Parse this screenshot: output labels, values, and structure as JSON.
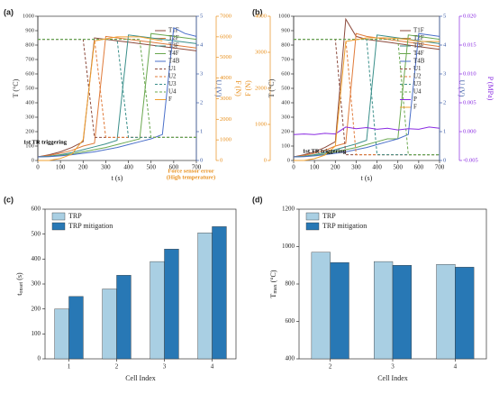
{
  "chart_data": [
    {
      "type": "line",
      "panel": "(a)",
      "x": [
        0,
        50,
        100,
        150,
        200,
        250,
        300,
        350,
        400,
        450,
        500,
        550,
        600,
        650,
        700
      ],
      "xlim": [
        0,
        700
      ],
      "xticks": [
        0,
        100,
        200,
        300,
        400,
        500,
        600,
        700
      ],
      "xlabel": "t (s)",
      "ylim": [
        0,
        1000
      ],
      "yticks": [
        0,
        100,
        200,
        300,
        400,
        500,
        600,
        700,
        800,
        900,
        1000
      ],
      "ylabel": "T (°C)",
      "y2lim": [
        0,
        5
      ],
      "y2ticks": [
        0,
        1,
        2,
        3,
        4,
        5
      ],
      "y2label": "U (V)",
      "y2color": "#3b5ba5",
      "y3lim": [
        0,
        7000
      ],
      "y3ticks": [
        0,
        1000,
        2000,
        3000,
        4000,
        5000,
        6000,
        7000
      ],
      "y3label": "F (N)",
      "y3color": "#e8901e",
      "series": [
        {
          "name": "T1F",
          "color": "#8c4a3c",
          "values": [
            25,
            40,
            60,
            90,
            130,
            850,
            840,
            830,
            820,
            810,
            800,
            790,
            780,
            770,
            760
          ]
        },
        {
          "name": "T2F",
          "color": "#e07b3a",
          "values": [
            25,
            35,
            50,
            70,
            100,
            120,
            860,
            850,
            840,
            830,
            820,
            810,
            800,
            790,
            780
          ]
        },
        {
          "name": "T3F",
          "color": "#3a8f8a",
          "values": [
            25,
            30,
            40,
            55,
            75,
            95,
            115,
            140,
            870,
            860,
            850,
            840,
            830,
            820,
            810
          ]
        },
        {
          "name": "T4F",
          "color": "#6aa84f",
          "values": [
            25,
            28,
            35,
            45,
            60,
            75,
            90,
            110,
            130,
            150,
            880,
            870,
            860,
            850,
            840
          ]
        },
        {
          "name": "T4B",
          "color": "#4a6fc9",
          "values": [
            25,
            27,
            32,
            40,
            50,
            60,
            75,
            90,
            110,
            130,
            150,
            180,
            920,
            880,
            860
          ]
        },
        {
          "name": "U1",
          "color": "#8c4a3c",
          "dash": true,
          "axis": "y2",
          "values": [
            4.2,
            4.2,
            4.2,
            4.2,
            4.2,
            0.8,
            0.8,
            0.8,
            0.8,
            0.8,
            0.8,
            0.8,
            0.8,
            0.8,
            0.8
          ]
        },
        {
          "name": "U2",
          "color": "#e07b3a",
          "dash": true,
          "axis": "y2",
          "values": [
            4.2,
            4.2,
            4.2,
            4.2,
            4.2,
            4.2,
            0.8,
            0.8,
            0.8,
            0.8,
            0.8,
            0.8,
            0.8,
            0.8,
            0.8
          ]
        },
        {
          "name": "U3",
          "color": "#3a8f8a",
          "dash": true,
          "axis": "y2",
          "values": [
            4.2,
            4.2,
            4.2,
            4.2,
            4.2,
            4.2,
            4.2,
            4.2,
            0.8,
            0.8,
            0.8,
            0.8,
            0.8,
            0.8,
            0.8
          ]
        },
        {
          "name": "U4",
          "color": "#6aa84f",
          "dash": true,
          "axis": "y2",
          "values": [
            4.2,
            4.2,
            4.2,
            4.2,
            4.2,
            4.2,
            4.2,
            4.2,
            4.2,
            4.2,
            0.8,
            0.8,
            0.8,
            0.8,
            0.8
          ]
        },
        {
          "name": "F",
          "color": "#f0a030",
          "axis": "y3",
          "values": [
            0,
            0,
            100,
            300,
            1000,
            5800,
            5900,
            6000,
            6000,
            6000,
            5900,
            5800,
            null,
            null,
            null
          ]
        }
      ],
      "annotations": [
        "1st TR triggering",
        "Force sensor error",
        "(High temperature)"
      ]
    },
    {
      "type": "line",
      "panel": "(b)",
      "x": [
        0,
        50,
        100,
        150,
        200,
        250,
        300,
        350,
        400,
        450,
        500,
        550,
        600,
        650,
        700
      ],
      "xlim": [
        0,
        700
      ],
      "xticks": [
        0,
        100,
        200,
        300,
        400,
        500,
        600,
        700
      ],
      "xlabel": "t (s)",
      "ylim": [
        0,
        1000
      ],
      "yticks": [
        0,
        100,
        200,
        300,
        400,
        500,
        600,
        700,
        800,
        900,
        1000
      ],
      "ylabel": "T (°C)",
      "y2lim": [
        0,
        5
      ],
      "y2ticks": [
        0,
        1,
        2,
        3,
        4,
        5
      ],
      "y2label": "U (V)",
      "y2color": "#3b5ba5",
      "y3lim": [
        0,
        4000
      ],
      "y3ticks": [
        0,
        1000,
        2000,
        3000,
        4000
      ],
      "y3label": "F (N)",
      "y3color": "#e8901e",
      "y4lim": [
        -0.005,
        0.02
      ],
      "y4ticks": [
        -0.005,
        {
          "value": 0,
          "label": "0.000"
        },
        0.005,
        {
          "value": 0.01,
          "label": "0.010"
        },
        0.015,
        {
          "value": 0.02,
          "label": "0.020"
        }
      ],
      "y4label": "P (MPa)",
      "y4color": "#8a2be2",
      "series": [
        {
          "name": "T1F",
          "color": "#8c4a3c",
          "values": [
            25,
            40,
            60,
            90,
            130,
            980,
            860,
            840,
            830,
            820,
            810,
            800,
            790,
            780,
            770
          ]
        },
        {
          "name": "T2F",
          "color": "#e07b3a",
          "values": [
            25,
            35,
            50,
            70,
            100,
            120,
            880,
            860,
            850,
            840,
            830,
            820,
            810,
            800,
            790
          ]
        },
        {
          "name": "T3F",
          "color": "#3a8f8a",
          "values": [
            25,
            30,
            40,
            55,
            75,
            95,
            115,
            140,
            870,
            860,
            850,
            840,
            830,
            820,
            810
          ]
        },
        {
          "name": "T4F",
          "color": "#6aa84f",
          "values": [
            25,
            28,
            35,
            45,
            60,
            75,
            90,
            110,
            130,
            150,
            150,
            870,
            860,
            850,
            840
          ]
        },
        {
          "name": "T4B",
          "color": "#4a6fc9",
          "values": [
            25,
            27,
            32,
            40,
            50,
            60,
            75,
            90,
            110,
            130,
            150,
            180,
            880,
            870,
            860
          ]
        },
        {
          "name": "U1",
          "color": "#8c4a3c",
          "dash": true,
          "axis": "y2",
          "values": [
            4.2,
            4.2,
            4.2,
            4.2,
            4.2,
            0.2,
            0.2,
            0.2,
            0.2,
            0.2,
            0.2,
            0.2,
            0.2,
            0.2,
            0.2
          ]
        },
        {
          "name": "U2",
          "color": "#e07b3a",
          "dash": true,
          "axis": "y2",
          "values": [
            4.2,
            4.2,
            4.2,
            4.2,
            4.2,
            4.2,
            0.2,
            0.2,
            0.2,
            0.2,
            0.2,
            0.2,
            0.2,
            0.2,
            0.2
          ]
        },
        {
          "name": "U3",
          "color": "#3a8f8a",
          "dash": true,
          "axis": "y2",
          "values": [
            4.2,
            4.2,
            4.2,
            4.2,
            4.2,
            4.2,
            4.2,
            4.2,
            0.2,
            0.2,
            0.2,
            0.2,
            0.2,
            0.2,
            0.2
          ]
        },
        {
          "name": "U4",
          "color": "#6aa84f",
          "dash": true,
          "axis": "y2",
          "values": [
            4.2,
            4.2,
            4.2,
            4.2,
            4.2,
            4.2,
            4.2,
            4.2,
            4.2,
            4.2,
            4.2,
            0.2,
            0.2,
            0.2,
            0.2
          ]
        },
        {
          "name": "P",
          "color": "#8a2be2",
          "axis": "y4",
          "values": [
            -0.0005,
            -0.0004,
            -0.0005,
            -0.0003,
            -0.0004,
            0.0008,
            0.0005,
            0.0007,
            0.0004,
            0.0006,
            0.0003,
            0.0005,
            0.0004,
            0.0008,
            0.0006
          ]
        },
        {
          "name": "F",
          "color": "#f0a030",
          "axis": "y3",
          "values": [
            0,
            0,
            50,
            150,
            400,
            3300,
            3350,
            3400,
            3400,
            3400,
            3380,
            3350,
            3300,
            3300,
            3300
          ]
        }
      ],
      "annotations": [
        "1st TR triggering"
      ]
    },
    {
      "type": "bar",
      "panel": "(c)",
      "categories": [
        "1",
        "2",
        "3",
        "4"
      ],
      "xlabel": "Cell Index",
      "ylim": [
        0,
        600
      ],
      "yticks": [
        0,
        100,
        200,
        300,
        400,
        500,
        600
      ],
      "ylabel_parts": [
        "t",
        "onset",
        "(s)"
      ],
      "series": [
        {
          "name": "TRP",
          "color": "#a9cfe3",
          "values": [
            200,
            280,
            390,
            505
          ]
        },
        {
          "name": "TRP mitigation",
          "color": "#2878b5",
          "values": [
            250,
            335,
            440,
            530
          ]
        }
      ]
    },
    {
      "type": "bar",
      "panel": "(d)",
      "categories": [
        "2",
        "3",
        "4"
      ],
      "xlabel": "Cell Index",
      "ylim": [
        400,
        1200
      ],
      "yticks": [
        400,
        600,
        800,
        1000,
        1200
      ],
      "ylabel_parts": [
        "T",
        "max",
        "(°C)"
      ],
      "series": [
        {
          "name": "TRP",
          "color": "#a9cfe3",
          "values": [
            970,
            920,
            905
          ]
        },
        {
          "name": "TRP mitigation",
          "color": "#2878b5",
          "values": [
            915,
            900,
            890
          ]
        }
      ]
    }
  ]
}
